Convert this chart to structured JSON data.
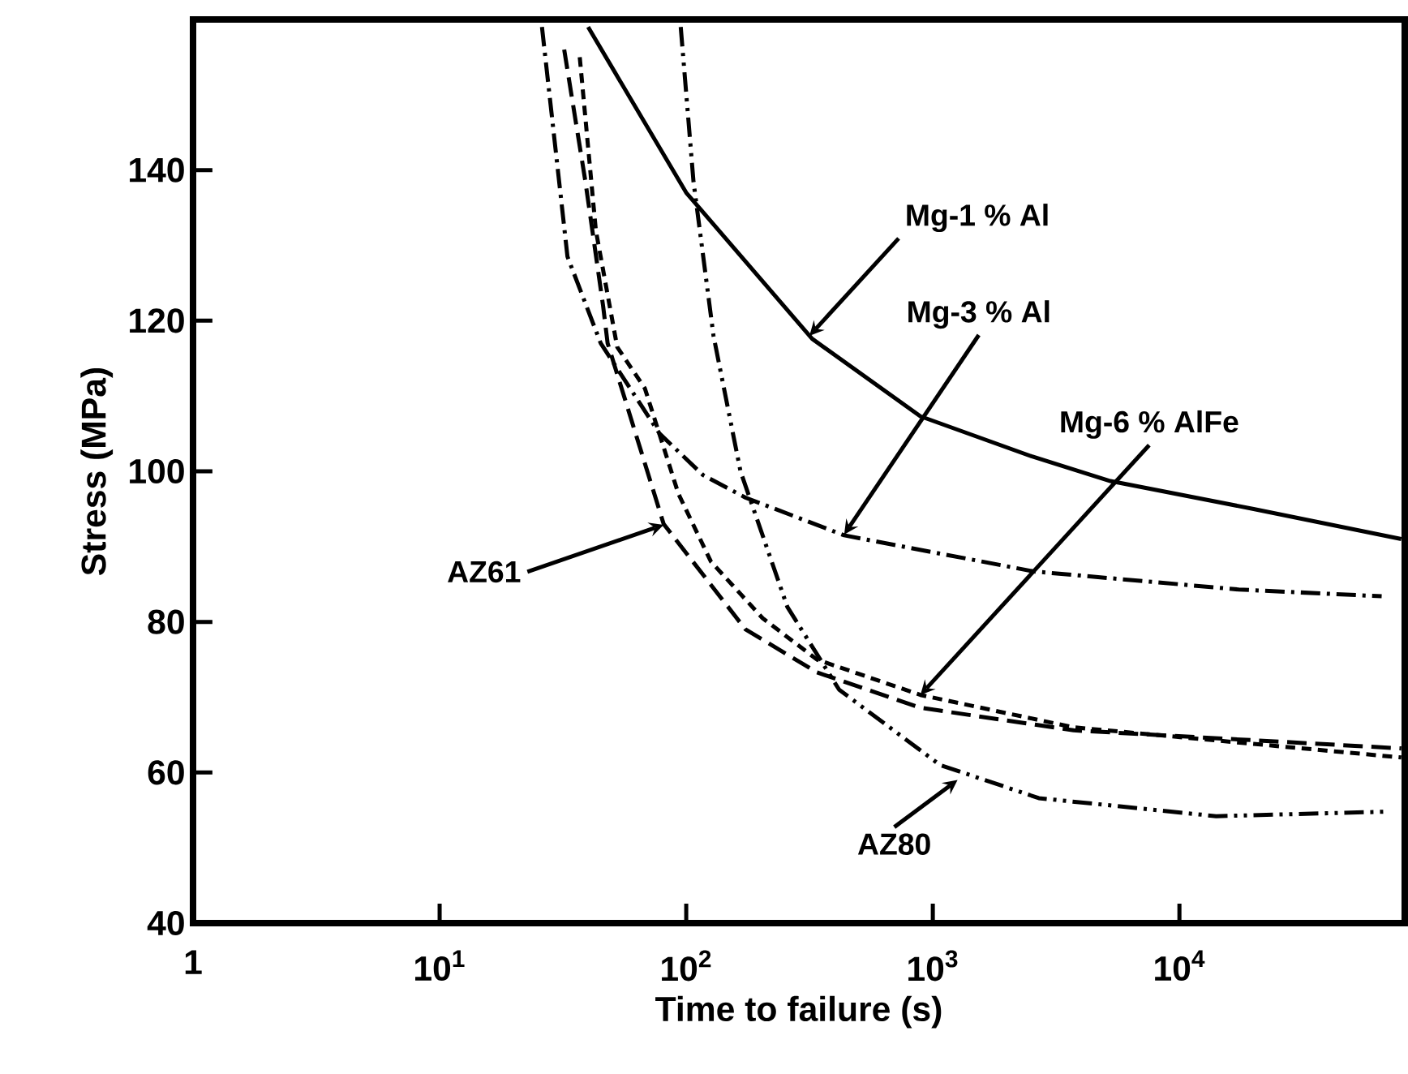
{
  "chart_data": {
    "type": "line",
    "xlabel": "Time to failure (s)",
    "ylabel": "Stress (MPa)",
    "log": "x",
    "xlim": [
      1,
      82000
    ],
    "ylim": [
      40,
      160
    ],
    "xticks": [
      1,
      {
        "value": 10,
        "label": "10$^{1}$"
      },
      {
        "value": 100,
        "label": "10$^{2}$"
      },
      {
        "value": 1000,
        "label": "10$^{3}$"
      },
      {
        "value": 10000,
        "label": "10$^{4}$"
      }
    ],
    "yticks": [
      40,
      60,
      80,
      100,
      120,
      140
    ],
    "grid": false,
    "marker": "none",
    "series": [
      {
        "color": "#000000",
        "line_style": "solid",
        "x": [
          40,
          100,
          324,
          891,
          2510,
          5250,
          20000,
          79400
        ],
        "values": [
          159,
          137,
          117.6,
          107.3,
          102,
          98.7,
          95,
          91
        ]
      },
      {
        "color": "#000000",
        "line_style": "dashdot",
        "x": [
          26,
          33,
          45,
          78,
          117,
          174,
          437,
          2570,
          17400,
          66100
        ],
        "values": [
          159,
          128.5,
          117,
          105,
          99.5,
          96.5,
          91.5,
          86.7,
          84.3,
          83.4
        ]
      },
      {
        "color": "#000000",
        "line_style": "densely dashed",
        "x": [
          37,
          43,
          52.5,
          68,
          93,
          126,
          204,
          339,
          891,
          3720,
          79400
        ],
        "values": [
          155,
          132,
          116.5,
          111,
          97,
          88,
          80.5,
          75,
          70.3,
          66,
          62
        ]
      },
      {
        "color": "#000000",
        "line_style": "dashed",
        "x": [
          32,
          39,
          46,
          48,
          81,
          174,
          339,
          891,
          3720,
          79400
        ],
        "values": [
          156,
          138.5,
          122,
          117,
          93,
          79,
          73.3,
          68.6,
          65.6,
          63.2
        ]
      },
      {
        "color": "#000000",
        "line_style": "dashdotdot",
        "x": [
          95,
          107,
          129,
          166,
          257,
          417,
          1070,
          2690,
          14100,
          69200
        ],
        "values": [
          159,
          138.5,
          118,
          100,
          82,
          71,
          61,
          56.6,
          54.2,
          54.8
        ]
      }
    ],
    "annotations": [
      {
        "text": "Mg-1 % Al",
        "x": 316,
        "y": 118
      },
      {
        "text": "Mg-3 % Al",
        "x": 437,
        "y": 91.6
      },
      {
        "text": "Mg-6 % AlFe",
        "x": 891,
        "y": 70.3
      },
      {
        "text": "AZ61",
        "x": 81,
        "y": 92.9
      },
      {
        "text": "AZ80",
        "x": 1260,
        "y": 59
      }
    ]
  }
}
